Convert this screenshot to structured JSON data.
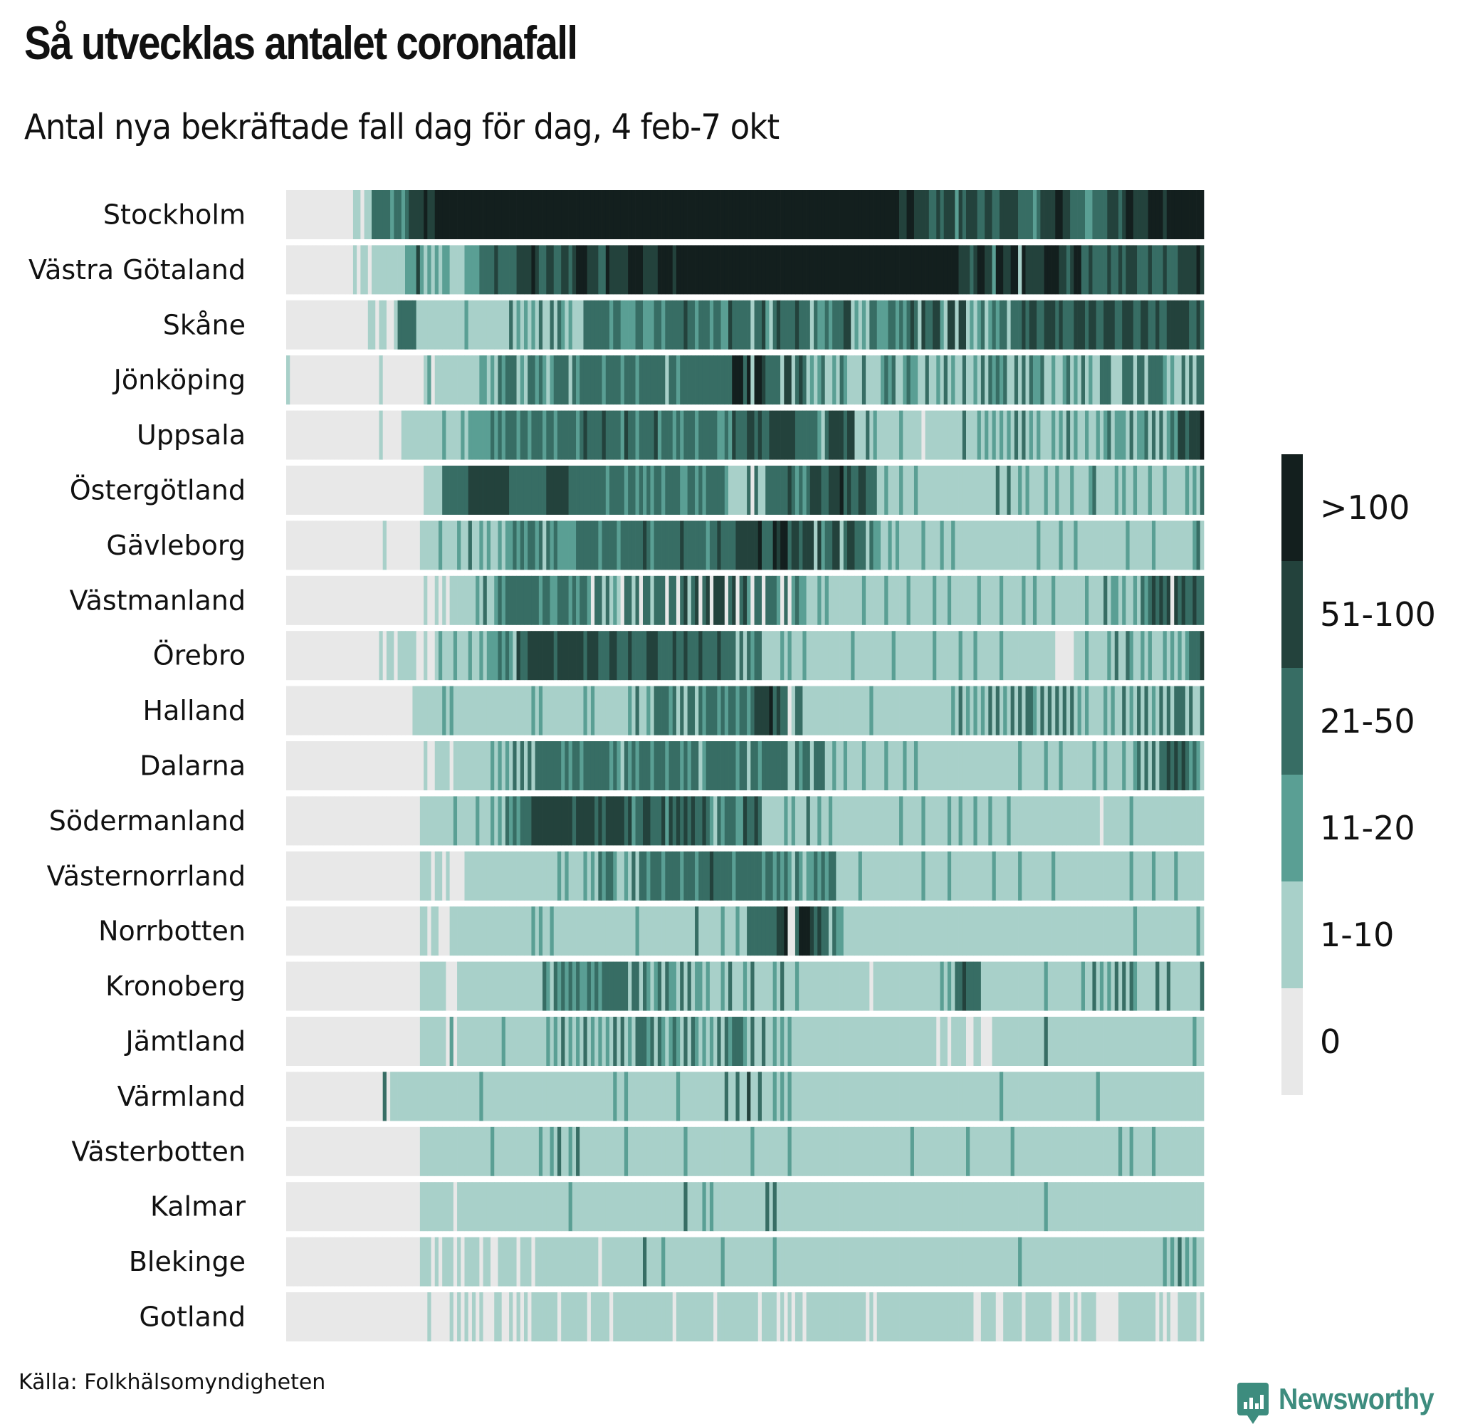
{
  "title": "Så utvecklas antalet coronafall",
  "subtitle": "Antal nya bekräftade fall dag för dag, 4 feb-7 okt",
  "source": "Källa: Folkhälsomyndigheten",
  "brand": "Newsworthy",
  "brand_icon": "bar-chart-speech-bubble-icon",
  "chart_data": {
    "type": "heatmap",
    "title": "Så utvecklas antalet coronafall",
    "subtitle": "Antal nya bekräftade fall dag för dag, 4 feb-7 okt",
    "x_range": [
      "4 feb",
      "7 okt"
    ],
    "days": 247,
    "legend": {
      "position": "right",
      "categories": [
        {
          "label": ">100",
          "color": "#131f1e"
        },
        {
          "label": "51-100",
          "color": "#23423c"
        },
        {
          "label": "21-50",
          "color": "#376d64"
        },
        {
          "label": "11-20",
          "color": "#5a9f94"
        },
        {
          "label": "1-10",
          "color": "#a8d0c9"
        },
        {
          "label": "0",
          "color": "#e8e8e8"
        }
      ]
    },
    "level_key": "0 = 0, 1 = 1-10, 2 = 11-20, 3 = 21-50, 4 = 51-100, 5 = >100",
    "rows": [
      {
        "region": "Stockholm",
        "levels": "0000000000 0000000011 0113333323 3234444544 5555555555 5555555555 5555555555 5555555555 5555555555 5555555555 5555555555 5555555555 5555555555 5555555555 5555555555 5555555555 5555544554 4443343444 2434443344 3344444333 3234444554 4333322333 3444345544 4455554555 5555555"
      },
      {
        "region": "Västra Götaland",
        "levels": "0000000000 0000000010 1101111111 1122242121 2122111122 2233334333 3344445433 4433443455 5444335444 4455554444 5555455555 5555555555 5555555555 5555555555 5555555555 5555555555 5555555555 5555555555 5444345544 2554455154 4444555544 3455334333 3433434443 3343334333 4444454444 3334443"
      },
      {
        "region": "Skåne",
        "levels": "0000000000 0000000000 0011011001 3333311111 1111111121 1111111111 3121212131 1313212111 3333333233 2222332223 3233333433 2333233224 3333313342 1343333433 3132232333 4412121332 2233232343 1433442144 1441212312 3233133343 4433444343 3344434433 4443344433 4433433444 4443343434 4443444"
      },
      {
        "region": "Jönköping",
        "levels": "1000000000 0000000000 0000010000 0000000120 1111111111 1122121323 3312133232 1233331323 3333323333 2333233333 3313323333 3333333333 5553515543 3331441343 1212311213 2111131111 2323112322 1131121312 1131121313 2323113131 3223112112 3121312113 3311133313 3133332121 1313133133 3121313"
      },
      {
        "region": "Uppsala",
        "levels": "0000000000 0000000000 0000010000 0111111111 1121111212 2222232323 3323323332 3323333323 4333343333 2433233334 2333232333 2333332232 4333443433 4444444333 3332134444 3441113121 1111121111 1011111111 1131112121 2121213131 2121112121 3121121121 2312221312 2313131232 4434445454 5444345"
      },
      {
        "region": "Östergötland",
        "levels": "0000000000 0000000000 0000000000 0000000111 1133333334 4444444444 3333333333 4444443333 3333332333 3233232323 3233332233 2323333321 1111303113 3333343232 3444334445 3433443331 1211121112 1111111111 1111111111 1311311212 1111211211 1211112311 1112121121 1121112111 1121213113 2121212"
      },
      {
        "region": "Gävleborg",
        "levels": "0000000000 0000000000 0000001000 0000001111 1211112113 1121211212 2323233231 3232222233 3333233332 3333334323 3333334333 3332334333 3444444533 3545534434 4414233441 3443331322 1121211111 1211112112 1111111111 1111111111 1121111121 1121111111 1111112111 1112111111 1111231312 2111101"
      },
      {
        "region": "Västmanland",
        "levels": "0000000000 0000000000 0000000000 0000000100 1010111111 1213112323 3333333323 3223332323 3203313121 0331303313 3303303413 4034044403 4034203303 3320302322 1112121111 1111121111 1211111211 1111211121 1111112111 1121111121 1211112111 1111121111 3122121121 3234343404 3433433333 3333223"
      },
      {
        "region": "Örebro",
        "levels": "0000000000 0000000000 0000010110 1111100100 1211121112 1121222323 2143344444 4434444444 3444333443 3343333444 3333433433 3433334333 3131323311 1112121112 1111111111 1121111111 1112111111 1111211111 1211121111 1121111111 1111111000 0011121111 1213113211 2121112121 2123334444 4444444"
      },
      {
        "region": "Halland",
        "levels": "0000000000 0000000000 0000000000 0000111111 1121211111 1111111111 1111112121 1111111111 2121111111 1121311213 3332313133 1323332323 3233234444 5343301331 1111111111 1111111211 1111111111 1111111112 1312121213 1312131313 3213131313 1312121111 2121131213 1312131313 3313113134 4313133"
      },
      {
        "region": "Dalarna",
        "levels": "0000000000 0000000000 0000000000 0000000100 1111011111 1111121212 1313131333 3333232332 3333333232 1323233323 3323332323 3123333333 3233133233 3333311323 3133311211 2111121111 1211112112 1111111111 1111111111 1111111211 1111211121 1111111211 2111121123 1313133434 3432321312 3433323"
      },
      {
        "region": "Södermanland",
        "levels": "0000000000 0000000000 0000000000 0000001111 1111121111 1211121213 2323334444 4444444344 4443434444 4342334433 3424343434 3343213233 3224334311 1111212111 3112112111 1111111111 1111121111 1211111121 1211121112 1111211111 1111111111 1111111110 1111111211 1111111111 1111111121 2111111"
      },
      {
        "region": "Västernorrland",
        "levels": "0000000000 0000000000 0000000000 0000001110 1101000011 1111111111 1111111111 1112121111 2121323321 1213133233 3233332333 2333433333 2333333323 3232321321 2232323311 1111211111 1111111111 1211111121 1111111111 2111111211 1111112111 1111111111 1111111211 1112111112 1111111121 1211121"
      },
      {
        "region": "Norrbotten",
        "levels": "0000000000 0000000000 0000000000 0000001101 1000111111 1111111111 1111112121 1211111111 1111111111 1111211111 1111111111 3111111211 1211333333 3344500355 5434331322 1111111111 1111111111 1111111111 1111111111 1111111111 1111111111 1111111111 1111111121 1111111111 1111121212 1212111"
      },
      {
        "region": "Kronoberg",
        "levels": "0000000000 0000000000 0000000000 0000001111 1110001111 1111111111 1111111113 2132323232 2323233333 3313313212 3132213131 2212111213 1112131111 1213111211 1111111111 1111111011 1111111111 1111112121 3343333111 1111111111 1111211111 1111211312 1213131321 1111311311 1111113101 1111111"
      },
      {
        "region": "Jämtland",
        "levels": "0000000000 0000000000 0000000000 0000001111 1110201111 1111111121 1111111111 2121312121 3121212131 3121333231 3212321313 2121213132 3332131131 1212121111 1111111111 1111111111 1111111111 1111101101 1110011000 1111111111 1111311111 1111111111 1111111111 1111111111 1111211111 1111313"
      },
      {
        "region": "Värmland",
        "levels": "0000000000 0000000000 0000003011 1111111111 1111111111 1121111111 1111111111 1111111111 1111111121 1211111111 1111121111 1111111131 1311411311 1212121111 1111111111 1111111111 1111111111 1111111111 1111111111 1121111111 1111111111 1111111121 1111111111 1111111111 1111111111 1111111"
      },
      {
        "region": "Västerbotten",
        "levels": "0000000000 0000000000 0000000000 0000001111 1111111111 1111121111 1111111121 1213112131 1111111111 1211111111 1111111211 1111111111 1111121111 1111121111 1111111111 1111111111 1111111121 1111111111 1112111111 1111121111 1111111111 1111111111 1111211211 1112111111 1111111343 1413131"
      },
      {
        "region": "Kalmar",
        "levels": "0000000000 0000000000 0000000000 0000001111 1111101111 1111111111 1111111111 1111112111 1111111111 1111111111 1111111311 1121211111 1111111113 1311111111 1111111111 1111111111 1111111111 1111111111 1111111111 1111111111 1111211111 1111111111 1111111111 1111111111 1111111111 1111111"
      },
      {
        "region": "Blekinge",
        "levels": "0000000000 0000000000 0000000000 0000001110 1011101011 1101100111 1101110111 1111111111 1111011111 1111113111 1211111111 1111111211 1111111111 1211111111 1111111111 1111111111 1111111111 1111111111 1111111111 1111111211 1111111111 1111111111 1111111111 1111112121 3121211121 1212121"
      },
      {
        "region": "Gotland",
        "levels": "0000000000 0000000000 0000000000 0000000010 0000101010 1010001100 1010101111 1110111111 1011111011 1111111111 1111011111 1111101111 1111111011 1101010110 1111111111 1111110101 1111111111 1111111111 1111100111 1001111101 1111110011 1010111100 0000111111 1111010100 1111101111 1111111"
      }
    ]
  }
}
